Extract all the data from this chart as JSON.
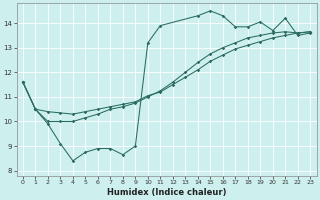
{
  "xlabel": "Humidex (Indice chaleur)",
  "bg_color": "#cdf0ee",
  "line_color": "#2a6b5e",
  "xlim": [
    -0.5,
    23.5
  ],
  "ylim": [
    7.8,
    14.8
  ],
  "xticks": [
    0,
    1,
    2,
    3,
    4,
    5,
    6,
    7,
    8,
    9,
    10,
    11,
    12,
    13,
    14,
    15,
    16,
    17,
    18,
    19,
    20,
    21,
    22,
    23
  ],
  "yticks": [
    8,
    9,
    10,
    11,
    12,
    13,
    14
  ],
  "line1_x": [
    0,
    1,
    2,
    3,
    4,
    5,
    6,
    7,
    8,
    9,
    10,
    11,
    14,
    15,
    16,
    17,
    18,
    19,
    20,
    21,
    22,
    23
  ],
  "line1_y": [
    11.6,
    10.5,
    9.9,
    9.1,
    8.4,
    8.75,
    8.9,
    8.9,
    8.65,
    9.0,
    13.2,
    13.9,
    14.3,
    14.5,
    14.3,
    13.85,
    13.85,
    14.05,
    13.7,
    14.2,
    13.5,
    13.6
  ],
  "line2_x": [
    0,
    1,
    2,
    3,
    4,
    5,
    6,
    7,
    8,
    9,
    10,
    11,
    12,
    13,
    14,
    15,
    16,
    17,
    18,
    19,
    20,
    21,
    22,
    23
  ],
  "line2_y": [
    11.6,
    10.5,
    10.4,
    10.35,
    10.3,
    10.4,
    10.5,
    10.6,
    10.7,
    10.8,
    11.05,
    11.2,
    11.5,
    11.8,
    12.1,
    12.45,
    12.7,
    12.95,
    13.1,
    13.25,
    13.4,
    13.5,
    13.6,
    13.65
  ],
  "line3_x": [
    0,
    1,
    2,
    3,
    4,
    5,
    6,
    7,
    8,
    9,
    10,
    11,
    12,
    13,
    14,
    15,
    16,
    17,
    18,
    19,
    20,
    21,
    22,
    23
  ],
  "line3_y": [
    11.6,
    10.5,
    10.0,
    10.0,
    10.0,
    10.15,
    10.3,
    10.5,
    10.6,
    10.75,
    11.0,
    11.25,
    11.6,
    12.0,
    12.4,
    12.75,
    13.0,
    13.2,
    13.4,
    13.5,
    13.6,
    13.65,
    13.6,
    13.65
  ]
}
